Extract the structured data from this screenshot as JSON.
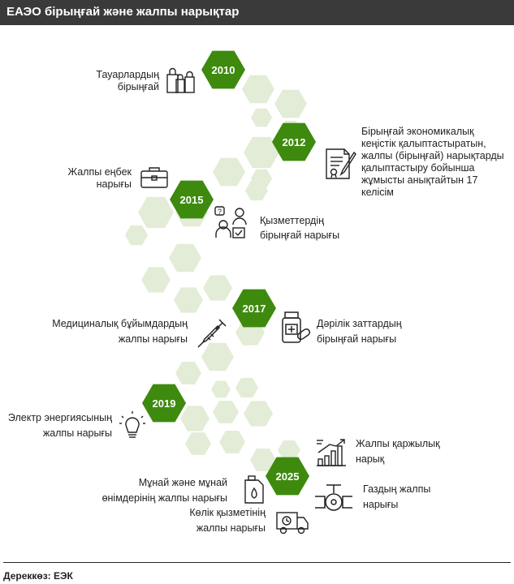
{
  "title": "ЕАЭО бірыңғай және жалпы нарықтар",
  "source": "Дереккөз: ЕЭК",
  "colors": {
    "header_bg": "#3a3a3a",
    "year_hex": "#3e8a0f",
    "light_hex": "#e3ecd6",
    "text": "#222222"
  },
  "years": [
    "2010",
    "2012",
    "2015",
    "2017",
    "2019",
    "2025"
  ],
  "labels": {
    "goods_1": "Тауарлардың",
    "goods_2": "бірыңғай",
    "ces_1": "Бірыңғай экономикалық",
    "ces_2": "кеңістік қалыптастыратын,",
    "ces_3": "жалпы (бірыңғай) нарықтарды",
    "ces_4": "қалыптастыру бойынша",
    "ces_5": "жұмысты анықтайтын 17",
    "ces_6": "келісім",
    "labor_1": "Жалпы еңбек",
    "labor_2": "нарығы",
    "services_1": "Қызметтердің",
    "services_2": "бірыңғай нарығы",
    "medical_1": "Медициналық бұйымдардың",
    "medical_2": "жалпы нарығы",
    "drugs_1": "Дәрілік заттардың",
    "drugs_2": "бірыңғай нарығы",
    "electric_1": "Электр энергиясының",
    "electric_2": "жалпы нарығы",
    "financial_1": "Жалпы қаржылық",
    "financial_2": "нарық",
    "oil_1": "Мұнай және мұнай",
    "oil_2": "өнімдерінің жалпы нарығы",
    "gas_1": "Газдың жалпы",
    "gas_2": "нарығы",
    "transport_1": "Көлік қызметінің",
    "transport_2": "жалпы нарығы"
  },
  "icons": [
    "shopping-bags-icon",
    "contract-signing-icon",
    "briefcase-icon",
    "service-workers-icon",
    "syringe-icon",
    "medicine-bottle-icon",
    "light-bulb-icon",
    "growth-chart-icon",
    "oil-canister-icon",
    "gas-pipe-valve-icon",
    "delivery-truck-icon"
  ]
}
